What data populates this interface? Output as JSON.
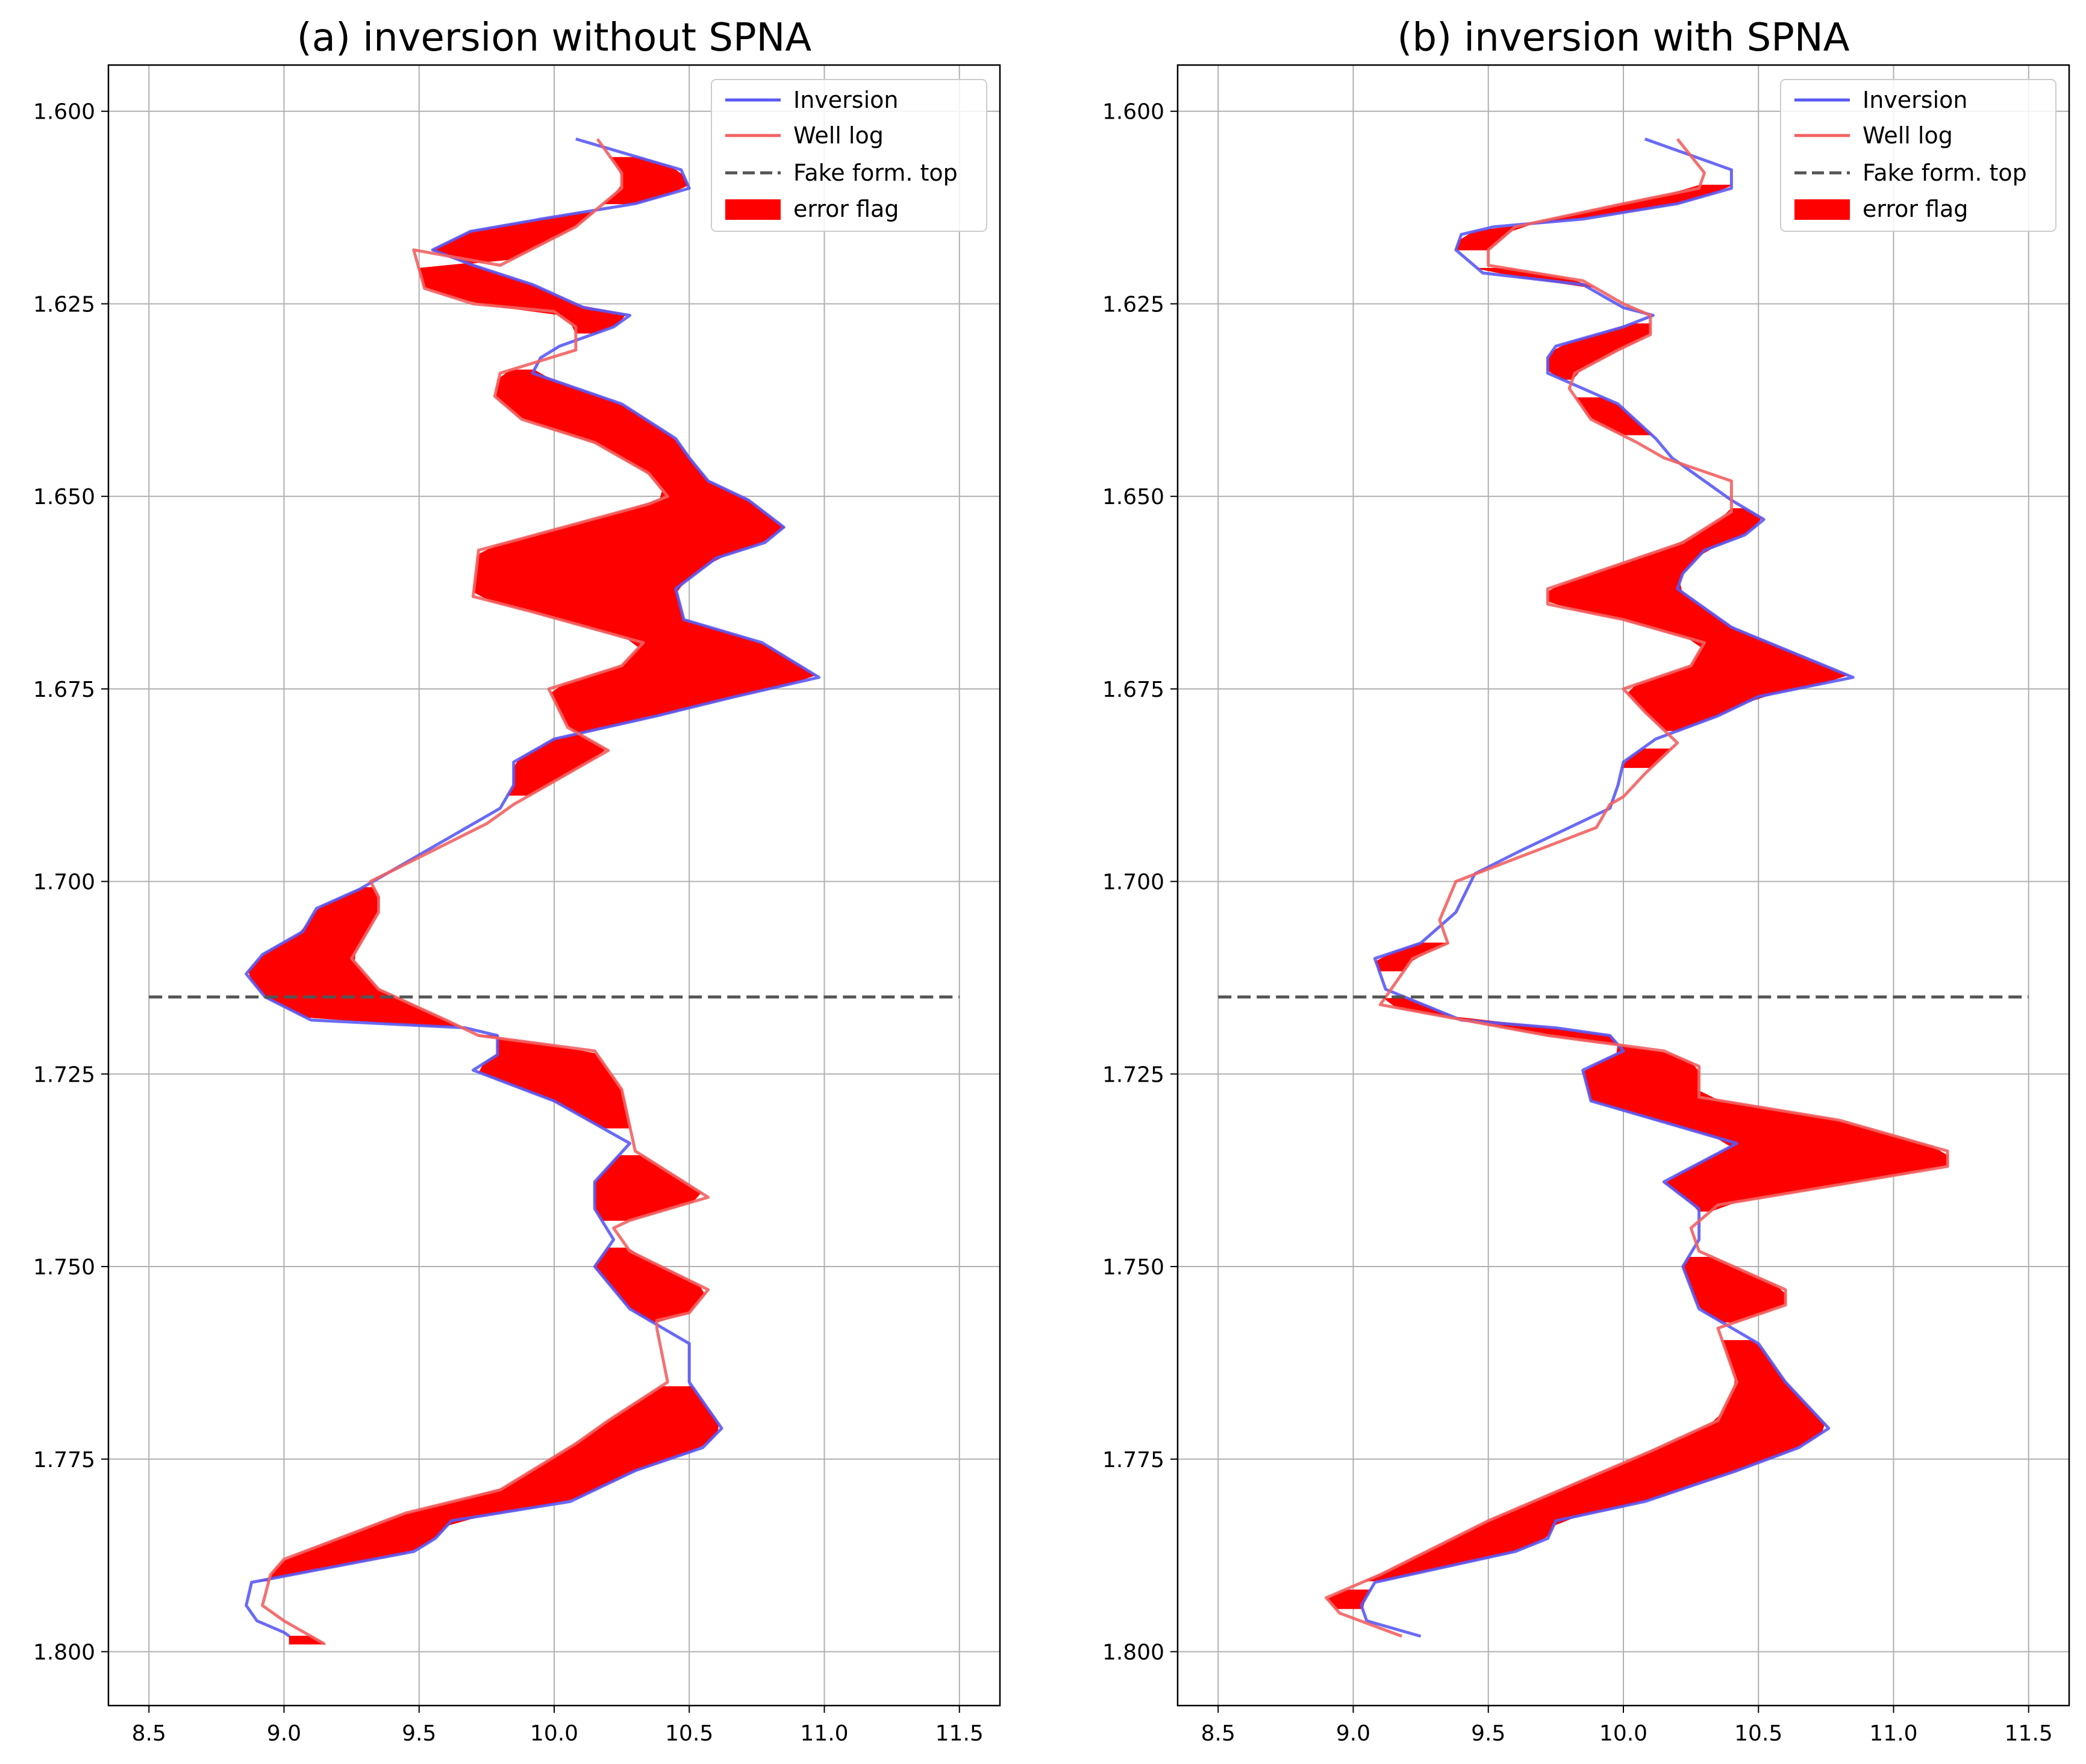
{
  "chart_data": [
    {
      "type": "line",
      "title": "(a) inversion without SPNA",
      "xlabel": "",
      "ylabel": "",
      "xlim": [
        8.35,
        11.65
      ],
      "ylim": [
        1.807,
        1.594
      ],
      "y_inverted": true,
      "xticks": [
        "8.5",
        "9.0",
        "9.5",
        "10.0",
        "10.5",
        "11.0",
        "11.5"
      ],
      "yticks": [
        "1.600",
        "1.625",
        "1.650",
        "1.675",
        "1.700",
        "1.725",
        "1.750",
        "1.775",
        "1.800"
      ],
      "grid": true,
      "legend_position": "top-right",
      "legend": [
        "Inversion",
        "Well log",
        "Fake form. top",
        "error flag"
      ],
      "fake_form_top": {
        "depth": 1.715,
        "x_range": [
          8.5,
          11.5
        ]
      },
      "series": [
        {
          "name": "Inversion",
          "color": "#5a5af5",
          "points": [
            [
              10.08,
              1.6036
            ],
            [
              10.47,
              1.6076
            ],
            [
              10.5,
              1.61
            ],
            [
              10.3,
              1.612
            ],
            [
              9.95,
              1.614
            ],
            [
              9.69,
              1.6156
            ],
            [
              9.55,
              1.618
            ],
            [
              9.7,
              1.62
            ],
            [
              9.92,
              1.6225
            ],
            [
              10.11,
              1.6255
            ],
            [
              10.28,
              1.6265
            ],
            [
              10.22,
              1.628
            ],
            [
              10.02,
              1.6305
            ],
            [
              9.95,
              1.632
            ],
            [
              9.92,
              1.634
            ],
            [
              10.25,
              1.638
            ],
            [
              10.45,
              1.6425
            ],
            [
              10.5,
              1.645
            ],
            [
              10.57,
              1.648
            ],
            [
              10.72,
              1.6505
            ],
            [
              10.85,
              1.654
            ],
            [
              10.78,
              1.656
            ],
            [
              10.6,
              1.658
            ],
            [
              10.45,
              1.662
            ],
            [
              10.48,
              1.666
            ],
            [
              10.77,
              1.669
            ],
            [
              10.98,
              1.6735
            ],
            [
              10.67,
              1.676
            ],
            [
              10.38,
              1.6785
            ],
            [
              10.0,
              1.6815
            ],
            [
              9.85,
              1.6845
            ],
            [
              9.85,
              1.6875
            ],
            [
              9.8,
              1.6905
            ],
            [
              9.28,
              1.701
            ],
            [
              9.12,
              1.7035
            ],
            [
              9.07,
              1.7065
            ],
            [
              8.92,
              1.7095
            ],
            [
              8.86,
              1.712
            ],
            [
              8.93,
              1.715
            ],
            [
              9.1,
              1.718
            ],
            [
              9.67,
              1.719
            ],
            [
              9.79,
              1.72
            ],
            [
              9.79,
              1.7225
            ],
            [
              9.7,
              1.7245
            ],
            [
              10.0,
              1.7285
            ],
            [
              10.28,
              1.734
            ],
            [
              10.15,
              1.739
            ],
            [
              10.15,
              1.7425
            ],
            [
              10.22,
              1.7465
            ],
            [
              10.15,
              1.75
            ],
            [
              10.28,
              1.7555
            ],
            [
              10.5,
              1.76
            ],
            [
              10.5,
              1.765
            ],
            [
              10.62,
              1.771
            ],
            [
              10.55,
              1.7735
            ],
            [
              10.3,
              1.7765
            ],
            [
              10.06,
              1.7805
            ],
            [
              9.62,
              1.783
            ],
            [
              9.56,
              1.7853
            ],
            [
              9.48,
              1.787
            ],
            [
              8.88,
              1.791
            ],
            [
              8.86,
              1.794
            ],
            [
              8.9,
              1.796
            ],
            [
              9.0,
              1.7975
            ],
            [
              9.02,
              1.798
            ]
          ]
        },
        {
          "name": "Well log",
          "color": "#f26262",
          "points": [
            [
              10.16,
              1.6036
            ],
            [
              10.25,
              1.608
            ],
            [
              10.25,
              1.61
            ],
            [
              10.08,
              1.615
            ],
            [
              9.8,
              1.62
            ],
            [
              9.48,
              1.618
            ],
            [
              9.52,
              1.623
            ],
            [
              9.7,
              1.625
            ],
            [
              10.0,
              1.626
            ],
            [
              10.08,
              1.628
            ],
            [
              10.08,
              1.631
            ],
            [
              9.8,
              1.634
            ],
            [
              9.78,
              1.637
            ],
            [
              9.88,
              1.64
            ],
            [
              10.15,
              1.643
            ],
            [
              10.35,
              1.647
            ],
            [
              10.42,
              1.65
            ],
            [
              10.35,
              1.651
            ],
            [
              9.72,
              1.657
            ],
            [
              9.7,
              1.663
            ],
            [
              9.92,
              1.665
            ],
            [
              10.33,
              1.669
            ],
            [
              10.25,
              1.672
            ],
            [
              9.98,
              1.675
            ],
            [
              10.05,
              1.68
            ],
            [
              10.2,
              1.683
            ],
            [
              10.05,
              1.686
            ],
            [
              9.95,
              1.688
            ],
            [
              9.85,
              1.69
            ],
            [
              9.75,
              1.6925
            ],
            [
              9.55,
              1.696
            ],
            [
              9.32,
              1.7
            ],
            [
              9.35,
              1.702
            ],
            [
              9.35,
              1.704
            ],
            [
              9.3,
              1.707
            ],
            [
              9.25,
              1.71
            ],
            [
              9.35,
              1.714
            ],
            [
              9.6,
              1.718
            ],
            [
              9.72,
              1.72
            ],
            [
              10.15,
              1.722
            ],
            [
              10.25,
              1.727
            ],
            [
              10.3,
              1.735
            ],
            [
              10.57,
              1.741
            ],
            [
              10.28,
              1.744
            ],
            [
              10.22,
              1.745
            ],
            [
              10.28,
              1.748
            ],
            [
              10.57,
              1.753
            ],
            [
              10.5,
              1.756
            ],
            [
              10.38,
              1.757
            ],
            [
              10.38,
              1.758
            ],
            [
              10.42,
              1.765
            ],
            [
              10.2,
              1.77
            ],
            [
              10.08,
              1.773
            ],
            [
              9.8,
              1.779
            ],
            [
              9.45,
              1.782
            ],
            [
              9.0,
              1.788
            ],
            [
              8.95,
              1.79
            ],
            [
              8.92,
              1.794
            ],
            [
              9.0,
              1.796
            ],
            [
              9.15,
              1.799
            ]
          ]
        }
      ]
    },
    {
      "type": "line",
      "title": "(b) inversion with SPNA",
      "xlabel": "",
      "ylabel": "",
      "xlim": [
        8.35,
        11.65
      ],
      "ylim": [
        1.807,
        1.594
      ],
      "y_inverted": true,
      "xticks": [
        "8.5",
        "9.0",
        "9.5",
        "10.0",
        "10.5",
        "11.0",
        "11.5"
      ],
      "yticks": [
        "1.600",
        "1.625",
        "1.650",
        "1.675",
        "1.700",
        "1.725",
        "1.750",
        "1.775",
        "1.800"
      ],
      "grid": true,
      "legend_position": "top-right",
      "legend": [
        "Inversion",
        "Well log",
        "Fake form. top",
        "error flag"
      ],
      "fake_form_top": {
        "depth": 1.715,
        "x_range": [
          8.5,
          11.5
        ]
      },
      "series": [
        {
          "name": "Inversion",
          "color": "#5a5af5",
          "points": [
            [
              10.08,
              1.6036
            ],
            [
              10.4,
              1.6076
            ],
            [
              10.4,
              1.61
            ],
            [
              10.2,
              1.612
            ],
            [
              9.85,
              1.614
            ],
            [
              9.52,
              1.615
            ],
            [
              9.4,
              1.616
            ],
            [
              9.38,
              1.618
            ],
            [
              9.48,
              1.621
            ],
            [
              9.85,
              1.6225
            ],
            [
              10.0,
              1.6255
            ],
            [
              10.11,
              1.6265
            ],
            [
              10.0,
              1.628
            ],
            [
              9.75,
              1.6305
            ],
            [
              9.72,
              1.632
            ],
            [
              9.72,
              1.634
            ],
            [
              9.98,
              1.638
            ],
            [
              10.12,
              1.6425
            ],
            [
              10.18,
              1.645
            ],
            [
              10.3,
              1.648
            ],
            [
              10.4,
              1.6505
            ],
            [
              10.52,
              1.653
            ],
            [
              10.45,
              1.655
            ],
            [
              10.3,
              1.657
            ],
            [
              10.22,
              1.66
            ],
            [
              10.2,
              1.662
            ],
            [
              10.4,
              1.667
            ],
            [
              10.85,
              1.6735
            ],
            [
              10.5,
              1.676
            ],
            [
              10.35,
              1.6785
            ],
            [
              10.12,
              1.6815
            ],
            [
              10.0,
              1.6845
            ],
            [
              9.98,
              1.6875
            ],
            [
              9.95,
              1.6905
            ],
            [
              9.62,
              1.696
            ],
            [
              9.45,
              1.699
            ],
            [
              9.38,
              1.704
            ],
            [
              9.25,
              1.708
            ],
            [
              9.08,
              1.71
            ],
            [
              9.12,
              1.714
            ],
            [
              9.4,
              1.718
            ],
            [
              9.75,
              1.719
            ],
            [
              9.95,
              1.72
            ],
            [
              10.0,
              1.722
            ],
            [
              9.85,
              1.7245
            ],
            [
              9.88,
              1.7285
            ],
            [
              10.42,
              1.734
            ],
            [
              10.15,
              1.739
            ],
            [
              10.28,
              1.7425
            ],
            [
              10.28,
              1.7465
            ],
            [
              10.22,
              1.75
            ],
            [
              10.28,
              1.7555
            ],
            [
              10.5,
              1.76
            ],
            [
              10.6,
              1.765
            ],
            [
              10.76,
              1.771
            ],
            [
              10.65,
              1.7735
            ],
            [
              10.42,
              1.7765
            ],
            [
              10.08,
              1.7805
            ],
            [
              9.75,
              1.783
            ],
            [
              9.72,
              1.7853
            ],
            [
              9.6,
              1.787
            ],
            [
              9.08,
              1.791
            ],
            [
              9.03,
              1.794
            ],
            [
              9.05,
              1.796
            ],
            [
              9.25,
              1.798
            ]
          ]
        },
        {
          "name": "Well log",
          "color": "#f26262",
          "points": [
            [
              10.2,
              1.6036
            ],
            [
              10.3,
              1.608
            ],
            [
              10.28,
              1.61
            ],
            [
              10.0,
              1.612
            ],
            [
              9.6,
              1.615
            ],
            [
              9.5,
              1.618
            ],
            [
              9.5,
              1.62
            ],
            [
              9.85,
              1.622
            ],
            [
              10.0,
              1.625
            ],
            [
              10.1,
              1.6265
            ],
            [
              10.1,
              1.629
            ],
            [
              9.98,
              1.631
            ],
            [
              9.82,
              1.634
            ],
            [
              9.8,
              1.636
            ],
            [
              9.88,
              1.64
            ],
            [
              10.05,
              1.643
            ],
            [
              10.15,
              1.645
            ],
            [
              10.4,
              1.648
            ],
            [
              10.4,
              1.652
            ],
            [
              10.22,
              1.656
            ],
            [
              9.72,
              1.662
            ],
            [
              9.72,
              1.664
            ],
            [
              10.0,
              1.666
            ],
            [
              10.3,
              1.669
            ],
            [
              10.25,
              1.672
            ],
            [
              10.0,
              1.675
            ],
            [
              10.08,
              1.678
            ],
            [
              10.2,
              1.682
            ],
            [
              10.08,
              1.686
            ],
            [
              10.0,
              1.689
            ],
            [
              9.95,
              1.69
            ],
            [
              9.9,
              1.693
            ],
            [
              9.38,
              1.7
            ],
            [
              9.32,
              1.705
            ],
            [
              9.35,
              1.708
            ],
            [
              9.22,
              1.71
            ],
            [
              9.1,
              1.716
            ],
            [
              9.72,
              1.72
            ],
            [
              10.15,
              1.722
            ],
            [
              10.28,
              1.724
            ],
            [
              10.28,
              1.728
            ],
            [
              10.8,
              1.731
            ],
            [
              11.2,
              1.735
            ],
            [
              11.2,
              1.737
            ],
            [
              10.35,
              1.742
            ],
            [
              10.25,
              1.745
            ],
            [
              10.28,
              1.748
            ],
            [
              10.6,
              1.753
            ],
            [
              10.6,
              1.755
            ],
            [
              10.35,
              1.758
            ],
            [
              10.42,
              1.765
            ],
            [
              10.35,
              1.77
            ],
            [
              10.1,
              1.774
            ],
            [
              9.5,
              1.783
            ],
            [
              9.1,
              1.79
            ],
            [
              8.9,
              1.793
            ],
            [
              8.95,
              1.795
            ],
            [
              9.18,
              1.798
            ]
          ]
        }
      ]
    }
  ]
}
